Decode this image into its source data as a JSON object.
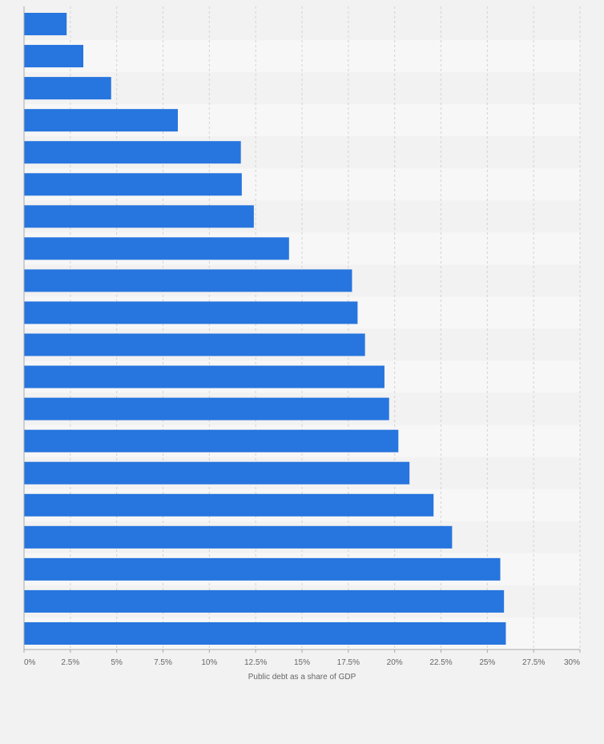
{
  "chart_data": {
    "type": "bar",
    "orientation": "horizontal",
    "title": "",
    "xlabel": "Public debt as a share of GDP",
    "ylabel": "",
    "xlim": [
      0,
      30
    ],
    "x_ticks": [
      0,
      2.5,
      5,
      7.5,
      10,
      12.5,
      15,
      17.5,
      20,
      22.5,
      25,
      27.5,
      30
    ],
    "x_tick_labels": [
      "0%",
      "2.5%",
      "5%",
      "7.5%",
      "10%",
      "12.5%",
      "15%",
      "17.5%",
      "20%",
      "22.5%",
      "25%",
      "27.5%",
      "30%"
    ],
    "grid": true,
    "legend": "none",
    "colors": {
      "bar": "#2775de",
      "band_dark": "#f2f2f2",
      "band_light": "#f7f7f7",
      "grid": "#d3d3d3",
      "axis": "#aaaaaa",
      "text": "#666666"
    },
    "series": [
      {
        "values": [
          2.3,
          3.2,
          4.7,
          8.3,
          11.7,
          11.75,
          12.4,
          14.3,
          17.7,
          18.0,
          18.4,
          19.45,
          19.7,
          20.2,
          20.8,
          22.1,
          23.1,
          25.7,
          25.9,
          26.0
        ]
      }
    ]
  }
}
